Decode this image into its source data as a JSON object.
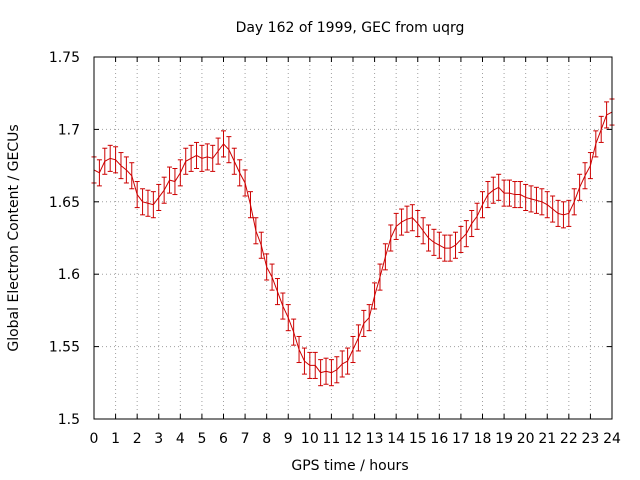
{
  "chart_data": {
    "type": "line",
    "title": "Day 162 of 1999, GEC from uqrg",
    "xlabel": "GPS time / hours",
    "ylabel": "Global Electron Content / GECUs",
    "xlim": [
      0,
      24
    ],
    "ylim": [
      1.5,
      1.75
    ],
    "x_ticks": [
      0,
      1,
      2,
      3,
      4,
      5,
      6,
      7,
      8,
      9,
      10,
      11,
      12,
      13,
      14,
      15,
      16,
      17,
      18,
      19,
      20,
      21,
      22,
      23,
      24
    ],
    "x_tick_labels": [
      "0",
      "1",
      "2",
      "3",
      "4",
      "5",
      "6",
      "7",
      "8",
      "9",
      "10",
      "11",
      "12",
      "13",
      "14",
      "15",
      "16",
      "17",
      "18",
      "19",
      "20",
      "21",
      "22",
      "23",
      "24"
    ],
    "y_ticks": [
      1.5,
      1.55,
      1.6,
      1.65,
      1.7,
      1.75
    ],
    "y_tick_labels": [
      "1.5",
      "1.55",
      "1.6",
      "1.65",
      "1.7",
      "1.75"
    ],
    "grid": true,
    "series_color": "#cc0000",
    "error": 0.009,
    "series": [
      {
        "name": "GEC",
        "x": [
          0,
          0.25,
          0.5,
          0.75,
          1,
          1.25,
          1.5,
          1.75,
          2,
          2.25,
          2.5,
          2.75,
          3,
          3.25,
          3.5,
          3.75,
          4,
          4.25,
          4.5,
          4.75,
          5,
          5.25,
          5.5,
          5.75,
          6,
          6.25,
          6.5,
          6.75,
          7,
          7.25,
          7.5,
          7.75,
          8,
          8.25,
          8.5,
          8.75,
          9,
          9.25,
          9.5,
          9.75,
          10,
          10.25,
          10.5,
          10.75,
          11,
          11.25,
          11.5,
          11.75,
          12,
          12.25,
          12.5,
          12.75,
          13,
          13.25,
          13.5,
          13.75,
          14,
          14.25,
          14.5,
          14.75,
          15,
          15.25,
          15.5,
          15.75,
          16,
          16.25,
          16.5,
          16.75,
          17,
          17.25,
          17.5,
          17.75,
          18,
          18.25,
          18.5,
          18.75,
          19,
          19.25,
          19.5,
          19.75,
          20,
          20.25,
          20.5,
          20.75,
          21,
          21.25,
          21.5,
          21.75,
          22,
          22.25,
          22.5,
          22.75,
          23,
          23.25,
          23.5,
          23.75,
          24
        ],
        "values": [
          1.672,
          1.67,
          1.678,
          1.68,
          1.679,
          1.675,
          1.672,
          1.668,
          1.655,
          1.65,
          1.649,
          1.648,
          1.653,
          1.658,
          1.665,
          1.664,
          1.67,
          1.678,
          1.68,
          1.682,
          1.68,
          1.681,
          1.68,
          1.685,
          1.69,
          1.686,
          1.678,
          1.67,
          1.663,
          1.648,
          1.63,
          1.62,
          1.605,
          1.598,
          1.588,
          1.578,
          1.57,
          1.56,
          1.548,
          1.54,
          1.537,
          1.537,
          1.532,
          1.533,
          1.532,
          1.534,
          1.538,
          1.54,
          1.548,
          1.556,
          1.566,
          1.57,
          1.585,
          1.598,
          1.612,
          1.625,
          1.633,
          1.636,
          1.638,
          1.639,
          1.635,
          1.63,
          1.625,
          1.622,
          1.62,
          1.618,
          1.618,
          1.62,
          1.624,
          1.628,
          1.635,
          1.64,
          1.648,
          1.655,
          1.658,
          1.66,
          1.656,
          1.656,
          1.655,
          1.655,
          1.653,
          1.652,
          1.651,
          1.65,
          1.648,
          1.645,
          1.642,
          1.641,
          1.642,
          1.65,
          1.66,
          1.668,
          1.675,
          1.69,
          1.7,
          1.71,
          1.712
        ]
      }
    ]
  }
}
